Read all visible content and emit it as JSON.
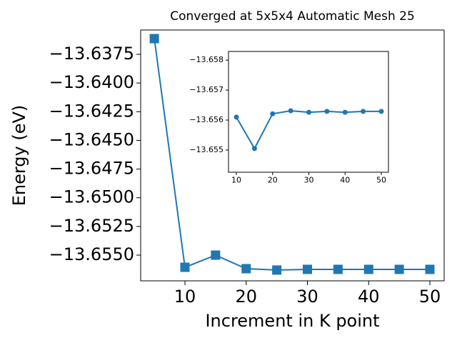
{
  "chart_data": [
    {
      "type": "line",
      "title": "Converged at 5x5x4 Automatic Mesh 25",
      "x_label": "Increment in K point",
      "y_label": "Energy (eV)",
      "x": [
        5,
        10,
        15,
        20,
        25,
        30,
        35,
        40,
        45,
        50
      ],
      "series": [
        {
          "color": "#1f77b4",
          "marker": "square",
          "values": [
            -13.63613,
            -13.65606,
            -13.655,
            -13.65618,
            -13.6563,
            -13.65624,
            -13.65624,
            -13.65624,
            -13.65624,
            -13.65624
          ]
        }
      ],
      "xlim": [
        2.77,
        52.33
      ],
      "xticks": [
        10,
        20,
        30,
        40,
        50
      ],
      "ylim": [
        -13.65724,
        -13.63538
      ],
      "yticks": [
        {
          "value": -13.655,
          "label": "−13.6550"
        },
        {
          "value": -13.6525,
          "label": "−13.6525"
        },
        {
          "value": -13.65,
          "label": "−13.6500"
        },
        {
          "value": -13.6475,
          "label": "−13.6475"
        },
        {
          "value": -13.645,
          "label": "−13.6450"
        },
        {
          "value": -13.6425,
          "label": "−13.6425"
        },
        {
          "value": -13.64,
          "label": "−13.6400"
        },
        {
          "value": -13.6375,
          "label": "−13.6375"
        }
      ]
    },
    {
      "type": "line",
      "x": [
        10,
        15,
        20,
        25,
        30,
        35,
        40,
        45,
        50
      ],
      "series": [
        {
          "color": "#1f77b4",
          "marker": "circle",
          "values": [
            -13.6561,
            -13.65505,
            -13.65621,
            -13.65631,
            -13.65626,
            -13.65629,
            -13.65626,
            -13.65629,
            -13.65629
          ]
        }
      ],
      "xlim": [
        7.83,
        51.97
      ],
      "xticks": [
        10,
        20,
        30,
        40,
        50
      ],
      "ylim": [
        -13.65426,
        -13.65829
      ],
      "yticks": [
        {
          "value": -13.655,
          "label": "−13.655"
        },
        {
          "value": -13.656,
          "label": "−13.656"
        },
        {
          "value": -13.657,
          "label": "−13.657"
        },
        {
          "value": -13.658,
          "label": "−13.658"
        }
      ]
    }
  ]
}
